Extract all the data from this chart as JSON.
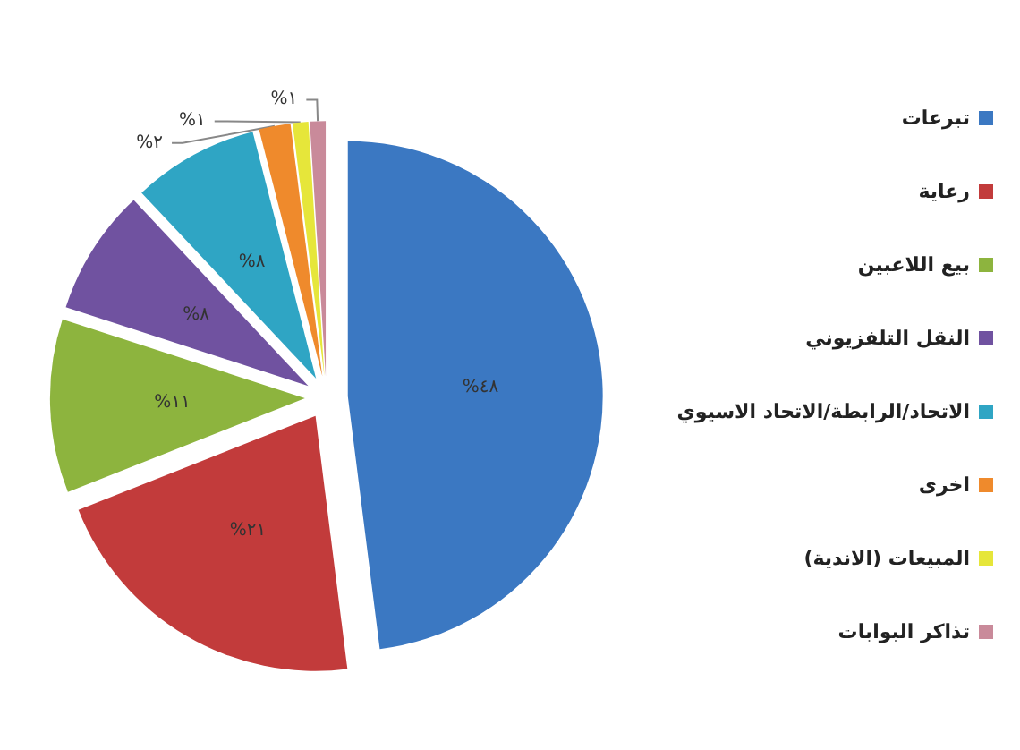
{
  "chart_data": {
    "type": "pie",
    "categories": [
      "تبرعات",
      "رعاية",
      "بيع اللاعبين",
      "النقل التلفزيوني",
      "الاتحاد/الرابطة/الاتحاد الاسيوي",
      "اخرى",
      "المبيعات (الاندية)",
      "تذاكر البوابات"
    ],
    "values": [
      48,
      21,
      11,
      8,
      8,
      2,
      1,
      1
    ],
    "value_labels": [
      "%٤٨",
      "%٢١",
      "%١١",
      "%٨",
      "%٨",
      "%٢",
      "%١",
      "%١"
    ],
    "colors": [
      "#3b78c2",
      "#c23b3b",
      "#8db43e",
      "#7052a0",
      "#2fa5c4",
      "#ef8a2c",
      "#e6e63a",
      "#c98a9a"
    ],
    "legend": "right"
  }
}
